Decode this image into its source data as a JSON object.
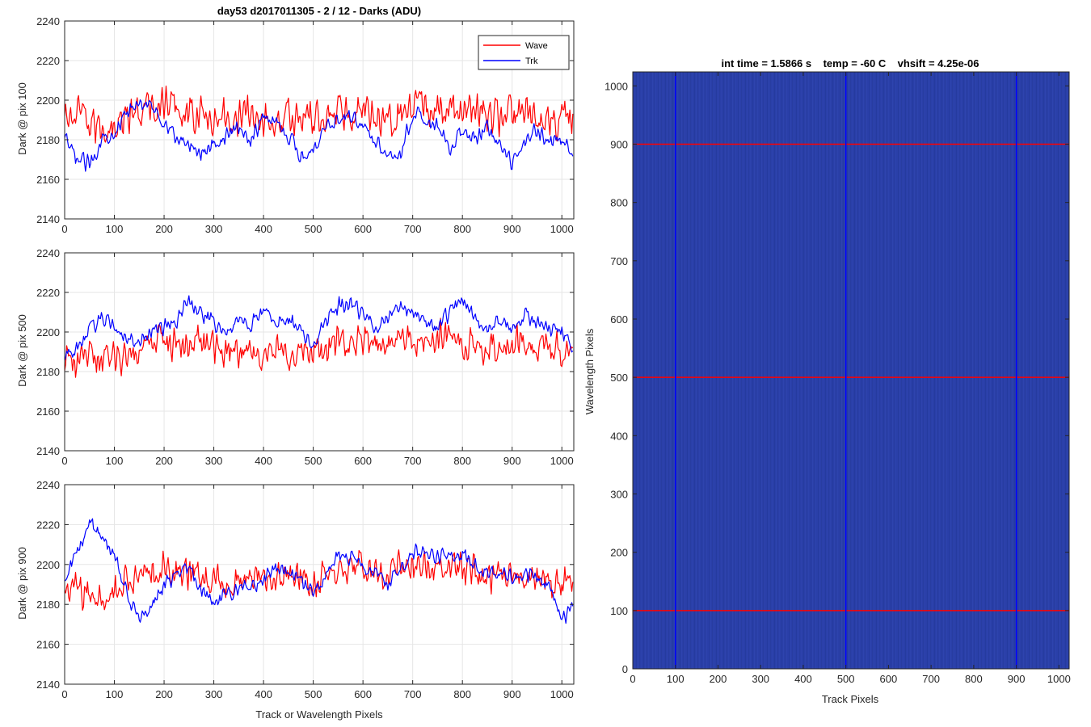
{
  "chart_data": [
    {
      "type": "line",
      "title": "day53 d2017011305 - 2 / 12 - Darks (ADU)",
      "xlabel": "",
      "ylabel": "Dark @ pix 100",
      "xlim": [
        0,
        1024
      ],
      "ylim": [
        2140,
        2240
      ],
      "x_ticks": [
        0,
        100,
        200,
        300,
        400,
        500,
        600,
        700,
        800,
        900,
        1000
      ],
      "y_ticks": [
        2140,
        2160,
        2180,
        2200,
        2220,
        2240
      ],
      "grid": true,
      "legend": {
        "placement": "top-right",
        "entries": [
          "Wave",
          "Trk"
        ]
      },
      "series": [
        {
          "name": "Wave",
          "color": "#ff0000",
          "x": [
            0,
            25,
            50,
            75,
            100,
            125,
            150,
            175,
            200,
            225,
            250,
            275,
            300,
            325,
            350,
            375,
            400,
            425,
            450,
            475,
            500,
            525,
            550,
            575,
            600,
            625,
            650,
            675,
            700,
            725,
            750,
            775,
            800,
            825,
            850,
            875,
            900,
            925,
            950,
            975,
            1000,
            1023
          ],
          "values": [
            2190,
            2192,
            2188,
            2186,
            2188,
            2191,
            2194,
            2196,
            2198,
            2196,
            2194,
            2192,
            2190,
            2191,
            2193,
            2192,
            2190,
            2189,
            2191,
            2192,
            2191,
            2192,
            2194,
            2195,
            2196,
            2194,
            2192,
            2193,
            2195,
            2196,
            2195,
            2194,
            2196,
            2195,
            2193,
            2192,
            2193,
            2192,
            2190,
            2191,
            2190,
            2192
          ],
          "noise": 12
        },
        {
          "name": "Trk",
          "color": "#0000ff",
          "x": [
            0,
            25,
            50,
            75,
            100,
            125,
            150,
            175,
            200,
            225,
            250,
            275,
            300,
            325,
            350,
            375,
            400,
            425,
            450,
            475,
            500,
            525,
            550,
            575,
            600,
            625,
            650,
            675,
            700,
            725,
            750,
            775,
            800,
            825,
            850,
            875,
            900,
            925,
            950,
            975,
            1000,
            1023
          ],
          "values": [
            2180,
            2170,
            2168,
            2180,
            2185,
            2192,
            2200,
            2196,
            2190,
            2180,
            2178,
            2174,
            2178,
            2182,
            2186,
            2180,
            2192,
            2190,
            2182,
            2172,
            2175,
            2188,
            2190,
            2192,
            2186,
            2180,
            2174,
            2172,
            2194,
            2190,
            2186,
            2176,
            2184,
            2180,
            2186,
            2176,
            2168,
            2178,
            2186,
            2178,
            2180,
            2172
          ],
          "noise": 5
        }
      ]
    },
    {
      "type": "line",
      "title": "",
      "xlabel": "",
      "ylabel": "Dark @ pix 500",
      "xlim": [
        0,
        1024
      ],
      "ylim": [
        2140,
        2240
      ],
      "x_ticks": [
        0,
        100,
        200,
        300,
        400,
        500,
        600,
        700,
        800,
        900,
        1000
      ],
      "y_ticks": [
        2140,
        2160,
        2180,
        2200,
        2220,
        2240
      ],
      "grid": true,
      "series": [
        {
          "name": "Wave",
          "color": "#ff0000",
          "x": [
            0,
            25,
            50,
            75,
            100,
            125,
            150,
            175,
            200,
            225,
            250,
            275,
            300,
            325,
            350,
            375,
            400,
            425,
            450,
            475,
            500,
            525,
            550,
            575,
            600,
            625,
            650,
            675,
            700,
            725,
            750,
            775,
            800,
            825,
            850,
            875,
            900,
            925,
            950,
            975,
            1000,
            1023
          ],
          "values": [
            2186,
            2185,
            2187,
            2186,
            2185,
            2190,
            2192,
            2193,
            2196,
            2195,
            2194,
            2195,
            2192,
            2190,
            2192,
            2191,
            2190,
            2192,
            2190,
            2190,
            2188,
            2190,
            2193,
            2194,
            2195,
            2193,
            2194,
            2196,
            2198,
            2195,
            2196,
            2198,
            2195,
            2192,
            2194,
            2192,
            2194,
            2193,
            2192,
            2193,
            2190,
            2186
          ],
          "noise": 11
        },
        {
          "name": "Trk",
          "color": "#0000ff",
          "x": [
            0,
            25,
            50,
            75,
            100,
            125,
            150,
            175,
            200,
            225,
            250,
            275,
            300,
            325,
            350,
            375,
            400,
            425,
            450,
            475,
            500,
            525,
            550,
            575,
            600,
            625,
            650,
            675,
            700,
            725,
            750,
            775,
            800,
            825,
            850,
            875,
            900,
            925,
            950,
            975,
            1000,
            1023
          ],
          "values": [
            2188,
            2192,
            2200,
            2208,
            2203,
            2198,
            2196,
            2199,
            2203,
            2205,
            2216,
            2210,
            2204,
            2199,
            2207,
            2203,
            2210,
            2205,
            2206,
            2201,
            2194,
            2205,
            2213,
            2215,
            2209,
            2203,
            2207,
            2214,
            2211,
            2204,
            2202,
            2210,
            2217,
            2207,
            2200,
            2205,
            2202,
            2209,
            2205,
            2202,
            2200,
            2193
          ],
          "noise": 5
        }
      ]
    },
    {
      "type": "line",
      "title": "",
      "xlabel": "Track or Wavelength Pixels",
      "ylabel": "Dark @ pix 900",
      "xlim": [
        0,
        1024
      ],
      "ylim": [
        2140,
        2240
      ],
      "x_ticks": [
        0,
        100,
        200,
        300,
        400,
        500,
        600,
        700,
        800,
        900,
        1000
      ],
      "y_ticks": [
        2140,
        2160,
        2180,
        2200,
        2220,
        2240
      ],
      "grid": true,
      "series": [
        {
          "name": "Wave",
          "color": "#ff0000",
          "x": [
            0,
            25,
            50,
            75,
            100,
            125,
            150,
            175,
            200,
            225,
            250,
            275,
            300,
            325,
            350,
            375,
            400,
            425,
            450,
            475,
            500,
            525,
            550,
            575,
            600,
            625,
            650,
            675,
            700,
            725,
            750,
            775,
            800,
            825,
            850,
            875,
            900,
            925,
            950,
            975,
            1000,
            1023
          ],
          "values": [
            2188,
            2187,
            2184,
            2182,
            2186,
            2190,
            2194,
            2196,
            2198,
            2196,
            2195,
            2194,
            2192,
            2190,
            2192,
            2193,
            2194,
            2195,
            2194,
            2193,
            2192,
            2194,
            2196,
            2197,
            2198,
            2196,
            2197,
            2199,
            2200,
            2199,
            2198,
            2199,
            2197,
            2195,
            2196,
            2194,
            2196,
            2195,
            2193,
            2192,
            2190,
            2190
          ],
          "noise": 11
        },
        {
          "name": "Trk",
          "color": "#0000ff",
          "x": [
            0,
            25,
            50,
            75,
            100,
            125,
            150,
            175,
            200,
            225,
            250,
            275,
            300,
            325,
            350,
            375,
            400,
            425,
            450,
            475,
            500,
            525,
            550,
            575,
            600,
            625,
            650,
            675,
            700,
            725,
            750,
            775,
            800,
            825,
            850,
            875,
            900,
            925,
            950,
            975,
            1000,
            1023
          ],
          "values": [
            2192,
            2205,
            2222,
            2212,
            2205,
            2185,
            2172,
            2180,
            2190,
            2195,
            2198,
            2188,
            2180,
            2186,
            2188,
            2190,
            2192,
            2198,
            2195,
            2190,
            2185,
            2196,
            2205,
            2203,
            2200,
            2196,
            2190,
            2198,
            2207,
            2206,
            2203,
            2204,
            2206,
            2200,
            2196,
            2195,
            2194,
            2195,
            2192,
            2190,
            2172,
            2180
          ],
          "noise": 5
        }
      ]
    },
    {
      "type": "heatmap",
      "title": "int time = 1.5866 s    temp = -60 C    vhsift = 4.25e-06",
      "xlabel": "Track Pixels",
      "ylabel": "Wavelength Pixels",
      "xlim": [
        0,
        1024
      ],
      "ylim": [
        0,
        1024
      ],
      "x_ticks": [
        0,
        100,
        200,
        300,
        400,
        500,
        600,
        700,
        800,
        900,
        1000
      ],
      "y_ticks": [
        0,
        100,
        200,
        300,
        400,
        500,
        600,
        700,
        800,
        900,
        1000
      ],
      "fill_color": "#2a3fa8",
      "markers": {
        "vertical_lines": {
          "x": [
            100,
            500,
            900
          ],
          "color": "#0000ff"
        },
        "horizontal_lines": {
          "y": [
            100,
            500,
            900
          ],
          "color": "#ff0000"
        }
      }
    }
  ]
}
